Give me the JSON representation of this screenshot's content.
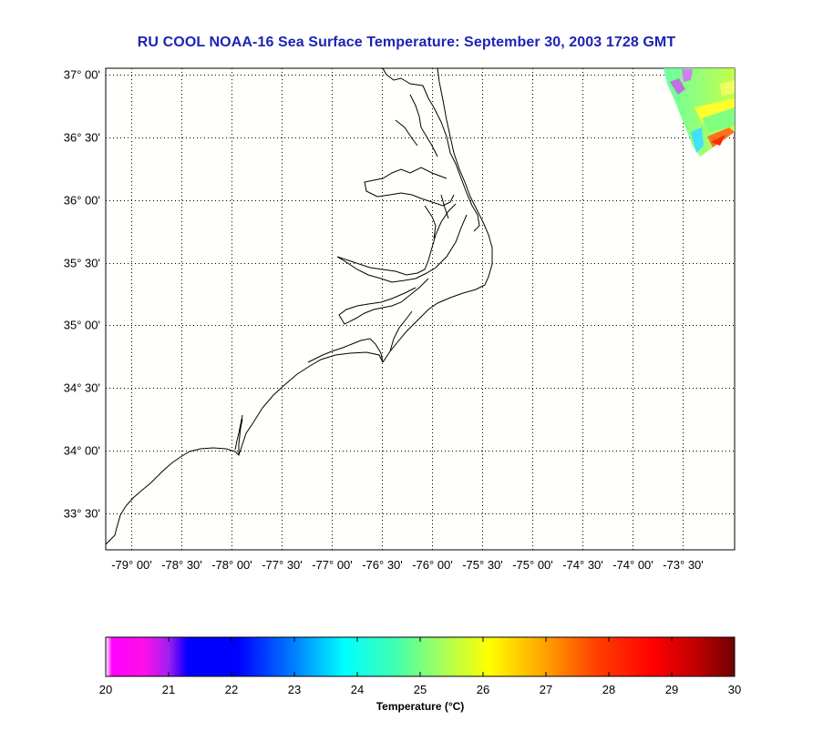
{
  "map": {
    "title": "RU COOL  NOAA-16  Sea Surface Temperature:  September 30, 2003 1728 GMT",
    "lat_ticks": [
      {
        "value": 37.0,
        "label": "37° 00'"
      },
      {
        "value": 36.5,
        "label": "36° 30'"
      },
      {
        "value": 36.0,
        "label": "36° 00'"
      },
      {
        "value": 35.5,
        "label": "35° 30'"
      },
      {
        "value": 35.0,
        "label": "35° 00'"
      },
      {
        "value": 34.5,
        "label": "34° 30'"
      },
      {
        "value": 34.0,
        "label": "34° 00'"
      },
      {
        "value": 33.5,
        "label": "33° 30'"
      }
    ],
    "lon_ticks": [
      {
        "value": -79.0,
        "label": "-79° 00'"
      },
      {
        "value": -78.5,
        "label": "-78° 30'"
      },
      {
        "value": -78.0,
        "label": "-78° 00'"
      },
      {
        "value": -77.5,
        "label": "-77° 30'"
      },
      {
        "value": -77.0,
        "label": "-77° 00'"
      },
      {
        "value": -76.5,
        "label": "-76° 30'"
      },
      {
        "value": -76.0,
        "label": "-76° 00'"
      },
      {
        "value": -75.5,
        "label": "-75° 30'"
      },
      {
        "value": -75.0,
        "label": "-75° 00'"
      },
      {
        "value": -74.5,
        "label": "-74° 30'"
      },
      {
        "value": -74.0,
        "label": "-74° 00'"
      },
      {
        "value": -73.5,
        "label": "-73° 30'"
      }
    ],
    "lat_range": [
      33.21,
      37.05
    ],
    "lon_range": [
      -79.25,
      -72.98
    ],
    "grid": "dotted"
  },
  "colorbar": {
    "label": "Temperature (°C)",
    "min": 20,
    "max": 30,
    "ticks": [
      "20",
      "21",
      "22",
      "23",
      "24",
      "25",
      "26",
      "27",
      "28",
      "29",
      "30"
    ],
    "colors": [
      "#ff00ff",
      "#ff20e0",
      "#8000ff",
      "#0000ff",
      "#0080ff",
      "#00ffff",
      "#80ff80",
      "#ffff00",
      "#ff8000",
      "#ff0000",
      "#800000"
    ]
  },
  "colors": {
    "title": "#1e23b4",
    "coastline": "#000000",
    "plot_background": "#fffffb"
  }
}
